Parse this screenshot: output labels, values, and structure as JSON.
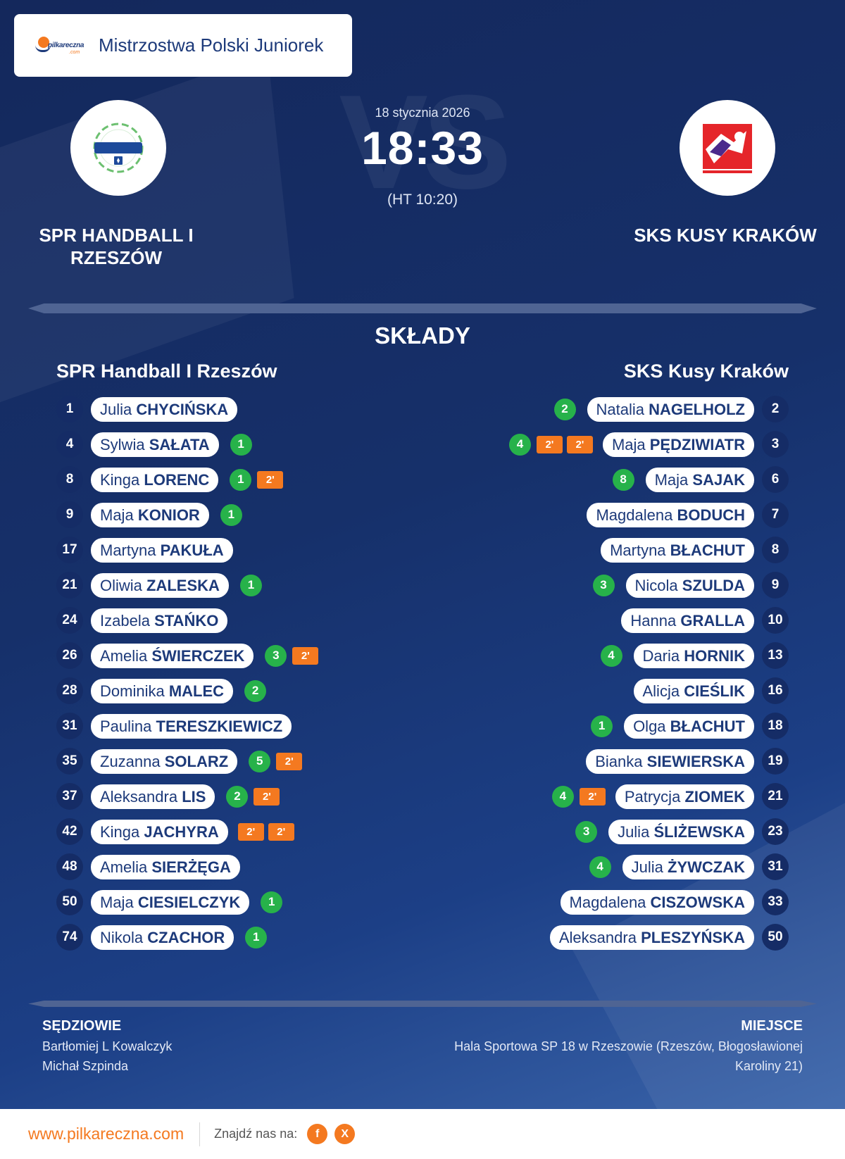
{
  "header": {
    "title": "Mistrzostwa Polski Juniorek"
  },
  "colors": {
    "navy": "#14285c",
    "accent": "#f47920",
    "goal": "#27b24a",
    "text_dark": "#1d3a7a"
  },
  "match": {
    "date": "18 stycznia 2026",
    "score": "18:33",
    "halftime": "(HT 10:20)",
    "home_name": "SPR HANDBALL I RZESZÓW",
    "away_name": "SKS KUSY KRAKÓW"
  },
  "section_title": "SKŁADY",
  "home": {
    "title": "SPR Handball I Rzeszów",
    "players": [
      {
        "num": "1",
        "first": "Julia",
        "last": "CHYCIŃSKA",
        "goals": null,
        "susp": 0
      },
      {
        "num": "4",
        "first": "Sylwia",
        "last": "SAŁATA",
        "goals": "1",
        "susp": 0
      },
      {
        "num": "8",
        "first": "Kinga",
        "last": "LORENC",
        "goals": "1",
        "susp": 1
      },
      {
        "num": "9",
        "first": "Maja",
        "last": "KONIOR",
        "goals": "1",
        "susp": 0
      },
      {
        "num": "17",
        "first": "Martyna",
        "last": "PAKUŁA",
        "goals": null,
        "susp": 0
      },
      {
        "num": "21",
        "first": "Oliwia",
        "last": "ZALESKA",
        "goals": "1",
        "susp": 0
      },
      {
        "num": "24",
        "first": "Izabela",
        "last": "STAŃKO",
        "goals": null,
        "susp": 0
      },
      {
        "num": "26",
        "first": "Amelia",
        "last": "ŚWIERCZEK",
        "goals": "3",
        "susp": 1
      },
      {
        "num": "28",
        "first": "Dominika",
        "last": "MALEC",
        "goals": "2",
        "susp": 0
      },
      {
        "num": "31",
        "first": "Paulina",
        "last": "TERESZKIEWICZ",
        "goals": null,
        "susp": 0
      },
      {
        "num": "35",
        "first": "Zuzanna",
        "last": "SOLARZ",
        "goals": "5",
        "susp": 1
      },
      {
        "num": "37",
        "first": "Aleksandra",
        "last": "LIS",
        "goals": "2",
        "susp": 1
      },
      {
        "num": "42",
        "first": "Kinga",
        "last": "JACHYRA",
        "goals": null,
        "susp": 2
      },
      {
        "num": "48",
        "first": "Amelia",
        "last": "SIERŻĘGA",
        "goals": null,
        "susp": 0
      },
      {
        "num": "50",
        "first": "Maja",
        "last": "CIESIELCZYK",
        "goals": "1",
        "susp": 0
      },
      {
        "num": "74",
        "first": "Nikola",
        "last": "CZACHOR",
        "goals": "1",
        "susp": 0
      }
    ]
  },
  "away": {
    "title": "SKS Kusy Kraków",
    "players": [
      {
        "num": "2",
        "first": "Natalia",
        "last": "NAGELHOLZ",
        "goals": "2",
        "susp": 0
      },
      {
        "num": "3",
        "first": "Maja",
        "last": "PĘDZIWIATR",
        "goals": "4",
        "susp": 2
      },
      {
        "num": "6",
        "first": "Maja",
        "last": "SAJAK",
        "goals": "8",
        "susp": 0
      },
      {
        "num": "7",
        "first": "Magdalena",
        "last": "BODUCH",
        "goals": null,
        "susp": 0
      },
      {
        "num": "8",
        "first": "Martyna",
        "last": "BŁACHUT",
        "goals": null,
        "susp": 0
      },
      {
        "num": "9",
        "first": "Nicola",
        "last": "SZULDA",
        "goals": "3",
        "susp": 0
      },
      {
        "num": "10",
        "first": "Hanna",
        "last": "GRALLA",
        "goals": null,
        "susp": 0
      },
      {
        "num": "13",
        "first": "Daria",
        "last": "HORNIK",
        "goals": "4",
        "susp": 0
      },
      {
        "num": "16",
        "first": "Alicja",
        "last": "CIEŚLIK",
        "goals": null,
        "susp": 0
      },
      {
        "num": "18",
        "first": "Olga",
        "last": "BŁACHUT",
        "goals": "1",
        "susp": 0
      },
      {
        "num": "19",
        "first": "Bianka",
        "last": "SIEWIERSKA",
        "goals": null,
        "susp": 0
      },
      {
        "num": "21",
        "first": "Patrycja",
        "last": "ZIOMEK",
        "goals": "4",
        "susp": 1
      },
      {
        "num": "23",
        "first": "Julia",
        "last": "ŚLIŻEWSKA",
        "goals": "3",
        "susp": 0
      },
      {
        "num": "31",
        "first": "Julia",
        "last": "ŻYWCZAK",
        "goals": "4",
        "susp": 0
      },
      {
        "num": "33",
        "first": "Magdalena",
        "last": "CISZOWSKA",
        "goals": null,
        "susp": 0
      },
      {
        "num": "50",
        "first": "Aleksandra",
        "last": "PLESZYŃSKA",
        "goals": null,
        "susp": 0
      }
    ]
  },
  "suspension_label": "2'",
  "referees": {
    "title": "SĘDZIOWIE",
    "names": [
      "Bartłomiej L Kowalczyk",
      "Michał Szpinda"
    ]
  },
  "venue": {
    "title": "MIEJSCE",
    "text": "Hala Sportowa SP 18 w Rzeszowie (Rzeszów, Błogosławionej Karoliny 21)"
  },
  "footer": {
    "url": "www.pilkareczna.com",
    "find_us": "Znajdź nas na:",
    "social": [
      {
        "icon": "facebook-icon",
        "glyph": "f"
      },
      {
        "icon": "x-icon",
        "glyph": "X"
      }
    ]
  },
  "icons": {
    "brand_logo": "pilkareczna-logo",
    "home_logo": "spr-handball-rzeszow-crest",
    "away_logo": "sks-kusy-krakow-crest"
  }
}
